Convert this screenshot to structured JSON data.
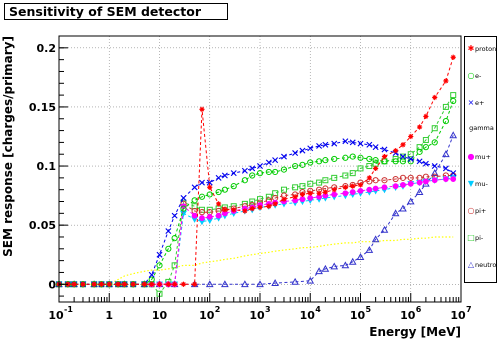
{
  "chart_data": {
    "type": "line",
    "title": "Sensitivity of SEM detector",
    "xlabel": "Energy [MeV]",
    "ylabel": "SEM response [charges/primary]",
    "x_scale": "log",
    "xlim": [
      0.1,
      10000000
    ],
    "ylim": [
      -0.015,
      0.21
    ],
    "x_ticks": [
      {
        "base": "10",
        "exp": "-1"
      },
      {
        "base": "1",
        "exp": ""
      },
      {
        "base": "10",
        "exp": ""
      },
      {
        "base": "10",
        "exp": "2"
      },
      {
        "base": "10",
        "exp": "3"
      },
      {
        "base": "10",
        "exp": "4"
      },
      {
        "base": "10",
        "exp": "5"
      },
      {
        "base": "10",
        "exp": "6"
      },
      {
        "base": "10",
        "exp": "7"
      }
    ],
    "y_ticks": [
      "0",
      "0.05",
      "0.1",
      "0.15",
      "0.2"
    ],
    "legend_position": "right",
    "series": [
      {
        "name": "proton",
        "color": "#ff0000",
        "marker": "star",
        "x": [
          0.1,
          0.15,
          0.2,
          0.3,
          0.5,
          0.7,
          1,
          1.5,
          2,
          3,
          5,
          7,
          10,
          15,
          20,
          30,
          50,
          70,
          100,
          150,
          200,
          300,
          500,
          700,
          1000,
          1500,
          2000,
          3000,
          5000,
          7000,
          10000,
          15000,
          20000,
          30000,
          50000,
          70000,
          100000,
          150000,
          200000,
          300000,
          500000,
          700000,
          1000000,
          1500000,
          2000000,
          3000000,
          5000000,
          7000000
        ],
        "y": [
          0,
          0,
          0,
          0,
          0,
          0,
          0,
          0,
          0,
          0,
          0,
          0,
          0,
          0,
          0,
          0,
          0,
          0.148,
          0.082,
          0.068,
          0.063,
          0.063,
          0.062,
          0.064,
          0.065,
          0.066,
          0.068,
          0.072,
          0.074,
          0.076,
          0.077,
          0.077,
          0.078,
          0.08,
          0.082,
          0.083,
          0.084,
          0.09,
          0.098,
          0.108,
          0.113,
          0.118,
          0.125,
          0.133,
          0.142,
          0.158,
          0.172,
          0.192
        ]
      },
      {
        "name": "e-",
        "color": "#00cc00",
        "marker": "circle-open",
        "x": [
          0.1,
          0.15,
          0.2,
          0.3,
          0.5,
          0.7,
          1,
          1.5,
          2,
          3,
          5,
          7,
          10,
          15,
          20,
          30,
          50,
          70,
          100,
          150,
          200,
          300,
          500,
          700,
          1000,
          1500,
          2000,
          3000,
          5000,
          7000,
          10000,
          15000,
          20000,
          30000,
          50000,
          70000,
          100000,
          150000,
          200000,
          300000,
          500000,
          700000,
          1000000,
          1500000,
          2000000,
          3000000,
          5000000,
          7000000
        ],
        "y": [
          0,
          0,
          0,
          0,
          0,
          0,
          0,
          0,
          0,
          0,
          0,
          0.004,
          0.016,
          0.03,
          0.039,
          0.064,
          0.071,
          0.074,
          0.076,
          0.078,
          0.08,
          0.083,
          0.088,
          0.092,
          0.094,
          0.095,
          0.095,
          0.097,
          0.1,
          0.101,
          0.103,
          0.104,
          0.105,
          0.106,
          0.107,
          0.108,
          0.107,
          0.106,
          0.105,
          0.104,
          0.104,
          0.104,
          0.104,
          0.112,
          0.116,
          0.12,
          0.138,
          0.155
        ]
      },
      {
        "name": "e+",
        "color": "#0000ee",
        "marker": "cross",
        "x": [
          0.1,
          0.15,
          0.2,
          0.3,
          0.5,
          0.7,
          1,
          1.5,
          2,
          3,
          5,
          7,
          10,
          15,
          20,
          30,
          50,
          70,
          100,
          150,
          200,
          300,
          500,
          700,
          1000,
          1500,
          2000,
          3000,
          5000,
          7000,
          10000,
          15000,
          20000,
          30000,
          50000,
          70000,
          100000,
          150000,
          200000,
          300000,
          500000,
          700000,
          1000000,
          1500000,
          2000000,
          3000000,
          5000000,
          7000000
        ],
        "y": [
          0,
          0,
          0,
          0,
          0,
          0,
          0,
          0,
          0,
          0,
          0,
          0.008,
          0.025,
          0.045,
          0.058,
          0.073,
          0.082,
          0.086,
          0.086,
          0.09,
          0.092,
          0.094,
          0.096,
          0.098,
          0.1,
          0.103,
          0.105,
          0.108,
          0.111,
          0.113,
          0.115,
          0.117,
          0.118,
          0.119,
          0.121,
          0.12,
          0.119,
          0.118,
          0.116,
          0.114,
          0.111,
          0.108,
          0.106,
          0.104,
          0.102,
          0.1,
          0.098,
          0.094
        ]
      },
      {
        "name": "gamma",
        "color": "#ffff00",
        "marker": "none",
        "x": [
          0.1,
          0.15,
          0.2,
          0.3,
          0.5,
          0.7,
          1,
          1.5,
          2,
          3,
          5,
          7,
          10,
          15,
          20,
          30,
          50,
          70,
          100,
          150,
          200,
          300,
          500,
          700,
          1000,
          1500,
          2000,
          3000,
          5000,
          7000,
          10000,
          15000,
          20000,
          30000,
          50000,
          70000,
          100000,
          150000,
          200000,
          300000,
          500000,
          700000,
          1000000,
          1500000,
          2000000,
          3000000,
          5000000,
          7000000
        ],
        "y": [
          0,
          0,
          0,
          0,
          0,
          0,
          0,
          0.004,
          0.007,
          0.009,
          0.011,
          0.012,
          0.012,
          0.013,
          0.014,
          0.016,
          0.016,
          0.018,
          0.019,
          0.02,
          0.021,
          0.022,
          0.024,
          0.025,
          0.026,
          0.027,
          0.028,
          0.029,
          0.03,
          0.031,
          0.031,
          0.032,
          0.033,
          0.034,
          0.035,
          0.035,
          0.036,
          0.036,
          0.036,
          0.037,
          0.037,
          0.038,
          0.038,
          0.039,
          0.039,
          0.04,
          0.04,
          0.04
        ]
      },
      {
        "name": "mu+",
        "color": "#ff00ff",
        "marker": "circle",
        "x": [
          0.1,
          0.15,
          0.2,
          0.3,
          0.5,
          0.7,
          1,
          1.5,
          2,
          3,
          5,
          7,
          10,
          15,
          20,
          30,
          50,
          70,
          100,
          150,
          200,
          300,
          500,
          700,
          1000,
          1500,
          2000,
          3000,
          5000,
          7000,
          10000,
          15000,
          20000,
          30000,
          50000,
          70000,
          100000,
          150000,
          200000,
          300000,
          500000,
          700000,
          1000000,
          1500000,
          2000000,
          3000000,
          5000000,
          7000000
        ],
        "y": [
          0,
          0,
          0,
          0,
          0,
          0,
          0,
          0,
          0,
          0,
          0,
          0,
          0,
          0,
          0,
          0.066,
          0.058,
          0.056,
          0.057,
          0.058,
          0.06,
          0.062,
          0.064,
          0.065,
          0.067,
          0.068,
          0.069,
          0.07,
          0.071,
          0.072,
          0.073,
          0.074,
          0.075,
          0.076,
          0.077,
          0.078,
          0.079,
          0.08,
          0.081,
          0.082,
          0.083,
          0.084,
          0.085,
          0.086,
          0.087,
          0.088,
          0.089,
          0.089
        ]
      },
      {
        "name": "mu-",
        "color": "#00ccff",
        "marker": "triangle-down",
        "x": [
          0.1,
          0.15,
          0.2,
          0.3,
          0.5,
          0.7,
          1,
          1.5,
          2,
          3,
          5,
          7,
          10,
          15,
          20,
          30,
          50,
          70,
          100,
          150,
          200,
          300,
          500,
          700,
          1000,
          1500,
          2000,
          3000,
          5000,
          7000,
          10000,
          15000,
          20000,
          30000,
          50000,
          70000,
          100000,
          150000,
          200000,
          300000,
          500000,
          700000,
          1000000,
          1500000,
          2000000,
          3000000,
          5000000,
          7000000
        ],
        "y": [
          0,
          0,
          0,
          0,
          0,
          0,
          0,
          0,
          0,
          0,
          0,
          0,
          0,
          0,
          0,
          0.06,
          0.055,
          0.053,
          0.054,
          0.056,
          0.058,
          0.06,
          0.062,
          0.063,
          0.065,
          0.066,
          0.067,
          0.068,
          0.069,
          0.07,
          0.071,
          0.072,
          0.073,
          0.074,
          0.075,
          0.076,
          0.077,
          0.078,
          0.079,
          0.08,
          0.082,
          0.083,
          0.085,
          0.086,
          0.087,
          0.088,
          0.089,
          0.09
        ]
      },
      {
        "name": "pi+",
        "color": "#cc3333",
        "marker": "circle-open",
        "x": [
          0.1,
          0.15,
          0.2,
          0.3,
          0.5,
          0.7,
          1,
          1.5,
          2,
          3,
          5,
          7,
          10,
          15,
          20,
          30,
          50,
          70,
          100,
          150,
          200,
          300,
          500,
          700,
          1000,
          1500,
          2000,
          3000,
          5000,
          7000,
          10000,
          15000,
          20000,
          30000,
          50000,
          70000,
          100000,
          150000,
          200000,
          300000,
          500000,
          700000,
          1000000,
          1500000,
          2000000,
          3000000,
          5000000,
          7000000
        ],
        "y": [
          0,
          0,
          0,
          0,
          0,
          0,
          0,
          0,
          0,
          0,
          0,
          0,
          0,
          0,
          0,
          0.068,
          0.062,
          0.061,
          0.061,
          0.062,
          0.063,
          0.064,
          0.066,
          0.067,
          0.069,
          0.071,
          0.073,
          0.075,
          0.076,
          0.078,
          0.079,
          0.08,
          0.081,
          0.082,
          0.083,
          0.084,
          0.086,
          0.087,
          0.088,
          0.088,
          0.089,
          0.09,
          0.09,
          0.09,
          0.091,
          0.091,
          0.092,
          0.092
        ]
      },
      {
        "name": "pi-",
        "color": "#33cc33",
        "marker": "square-open",
        "x": [
          0.1,
          0.15,
          0.2,
          0.3,
          0.5,
          0.7,
          1,
          1.5,
          2,
          3,
          5,
          7,
          10,
          15,
          20,
          30,
          50,
          70,
          100,
          150,
          200,
          300,
          500,
          700,
          1000,
          1500,
          2000,
          3000,
          5000,
          7000,
          10000,
          15000,
          20000,
          30000,
          50000,
          70000,
          100000,
          150000,
          200000,
          300000,
          500000,
          700000,
          1000000,
          1500000,
          2000000,
          3000000,
          5000000,
          7000000
        ],
        "y": [
          0,
          0,
          0,
          0,
          0,
          0,
          0,
          0,
          0,
          0,
          0,
          0,
          -0.008,
          0.002,
          0.016,
          0.069,
          0.066,
          0.063,
          0.063,
          0.064,
          0.065,
          0.066,
          0.068,
          0.07,
          0.072,
          0.074,
          0.077,
          0.08,
          0.082,
          0.083,
          0.085,
          0.086,
          0.088,
          0.09,
          0.092,
          0.094,
          0.098,
          0.1,
          0.102,
          0.104,
          0.106,
          0.108,
          0.11,
          0.116,
          0.122,
          0.132,
          0.15,
          0.16
        ]
      },
      {
        "name": "neutron",
        "color": "#3333cc",
        "marker": "triangle-up-open",
        "x": [
          0.1,
          0.2,
          0.5,
          1,
          2,
          5,
          10,
          20,
          50,
          100,
          200,
          500,
          1000,
          2000,
          5000,
          10000,
          15000,
          20000,
          30000,
          50000,
          70000,
          100000,
          150000,
          200000,
          300000,
          500000,
          700000,
          1000000,
          1500000,
          2000000,
          3000000,
          5000000,
          7000000
        ],
        "y": [
          0,
          0,
          0,
          0,
          0,
          0,
          0,
          0,
          0,
          0,
          0,
          0,
          0,
          0.001,
          0.002,
          0.003,
          0.011,
          0.013,
          0.015,
          0.016,
          0.019,
          0.023,
          0.029,
          0.038,
          0.046,
          0.06,
          0.064,
          0.07,
          0.078,
          0.085,
          0.094,
          0.11,
          0.126
        ]
      }
    ]
  }
}
